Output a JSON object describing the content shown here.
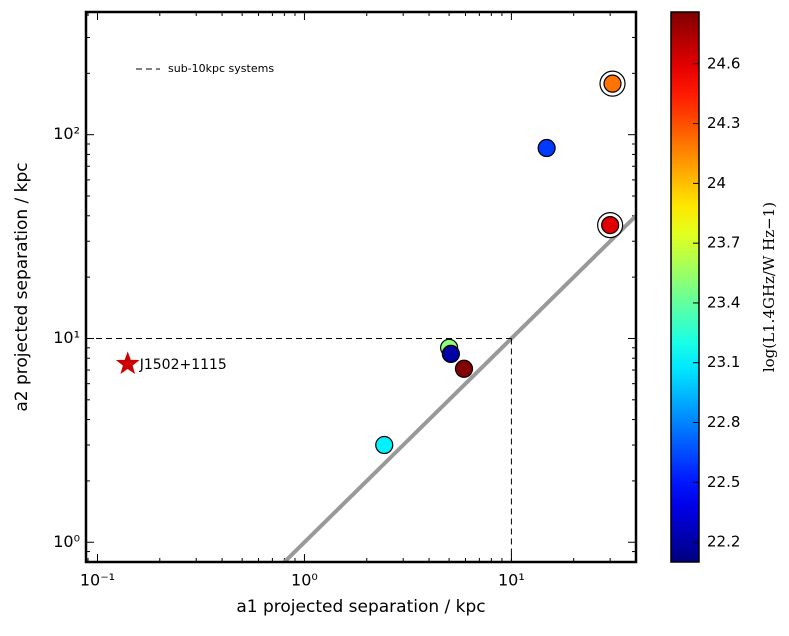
{
  "chart_data": {
    "type": "scatter",
    "xlabel": "a1 projected separation  /  kpc",
    "ylabel": "a2 projected separation  /  kpc",
    "xscale": "log",
    "yscale": "log",
    "xlim": [
      0.088,
      40
    ],
    "ylim": [
      0.8,
      400
    ],
    "xticks": [
      {
        "value": 0.1,
        "label": "10⁻¹"
      },
      {
        "value": 1,
        "label": "10⁰"
      },
      {
        "value": 10,
        "label": "10¹"
      }
    ],
    "yticks": [
      {
        "value": 1,
        "label": "10⁰"
      },
      {
        "value": 10,
        "label": "10¹"
      },
      {
        "value": 100,
        "label": "10²"
      }
    ],
    "series": [
      {
        "x": [
          30.8,
          14.8,
          30,
          5.0,
          5.1,
          5.9,
          2.43
        ],
        "y": [
          178,
          86,
          36,
          9.0,
          8.4,
          7.1,
          3.0
        ],
        "c": [
          24.2,
          22.6,
          24.6,
          23.5,
          22.2,
          24.85,
          23.1
        ],
        "circled": [
          true,
          false,
          true,
          false,
          false,
          false,
          false
        ]
      }
    ],
    "highlight": {
      "name": "J1502+1115",
      "x": 0.14,
      "y": 7.5,
      "color": "#cc0000"
    },
    "threshold": {
      "value": 10,
      "label": "sub-10kpc systems"
    },
    "colorbar": {
      "label": "log(L1.4GHz/W Hz−1)",
      "colormap": "jet",
      "lim": [
        22.1,
        24.86
      ],
      "ticks": [
        22.2,
        22.5,
        22.8,
        23.1,
        23.4,
        23.7,
        24.0,
        24.3,
        24.6
      ]
    }
  }
}
